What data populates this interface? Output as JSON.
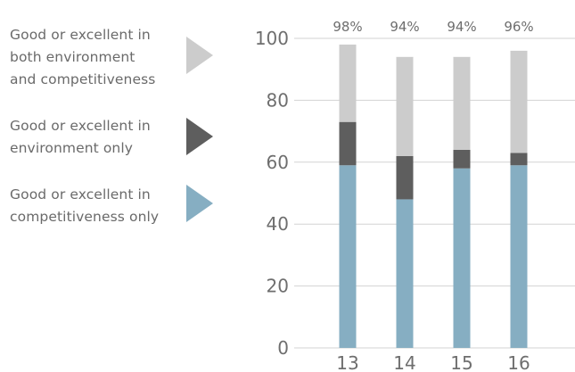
{
  "chart_data": {
    "type": "bar",
    "stacked": true,
    "categories": [
      "13",
      "14",
      "15",
      "16"
    ],
    "series": [
      {
        "name": "Good or excellent in competitiveness only",
        "color": "#86aec2",
        "values": [
          59,
          48,
          58,
          59
        ]
      },
      {
        "name": "Good or excellent in environment only",
        "color": "#5e5e5e",
        "values": [
          14,
          14,
          6,
          4
        ]
      },
      {
        "name": "Good or excellent in both environment and competitiveness",
        "color": "#cccccc",
        "values": [
          25,
          32,
          30,
          33
        ]
      }
    ],
    "totals_labels": [
      "98%",
      "94%",
      "94%",
      "96%"
    ],
    "yticks": [
      "100",
      "80",
      "60",
      "40",
      "20",
      "0"
    ],
    "ylim": [
      0,
      100
    ],
    "grid": true,
    "legend_position": "left",
    "legend": [
      {
        "lines": [
          "Good or excellent in",
          "both environment",
          "and competitiveness"
        ],
        "color": "#cccccc"
      },
      {
        "lines": [
          "Good or excellent in",
          "environment only"
        ],
        "color": "#5e5e5e"
      },
      {
        "lines": [
          "Good or excellent in",
          "competitiveness only"
        ],
        "color": "#86aec2"
      }
    ]
  }
}
